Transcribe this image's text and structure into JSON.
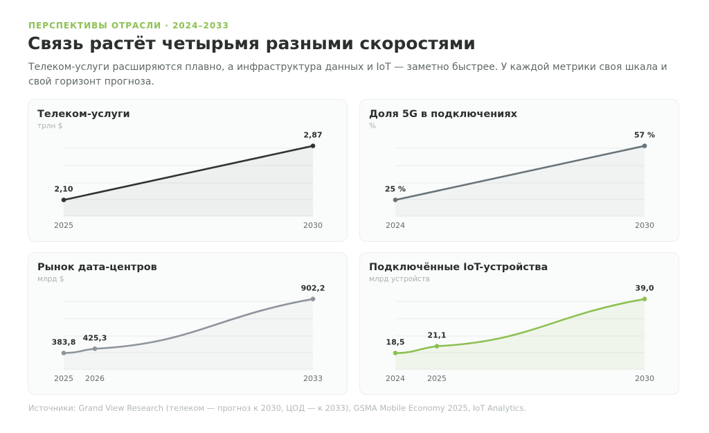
{
  "header": {
    "eyebrow": "ПЕРСПЕКТИВЫ ОТРАСЛИ · 2024–2033",
    "title": "Связь растёт четырьмя разными скоростями",
    "subtitle": "Телеком-услуги расширяются плавно, а инфраструктура данных и IoT — заметно быстрее. У каждой метрики своя шкала и свой горизонт прогноза."
  },
  "colors": {
    "accent": "#8cc152",
    "telecom": "#2f3535",
    "share5g": "#68747a",
    "datacenter": "#8e959c",
    "iot": "#8cc152"
  },
  "chart_data": [
    {
      "id": "telecom",
      "type": "line",
      "title": "Телеком-услуги",
      "unit": "трлн $",
      "x": [
        "2025",
        "2030"
      ],
      "values": [
        2.1,
        2.87
      ],
      "value_labels": [
        "2,10",
        "2,87"
      ],
      "color": "#2f3535",
      "grid": true
    },
    {
      "id": "share5g",
      "type": "line",
      "title": "Доля 5G в подключениях",
      "unit": "%",
      "x": [
        "2024",
        "2030"
      ],
      "values": [
        25,
        57
      ],
      "value_labels": [
        "25 %",
        "57 %"
      ],
      "color": "#68747a",
      "grid": true
    },
    {
      "id": "datacenter",
      "type": "line",
      "title": "Рынок дата-центров",
      "unit": "млрд $",
      "x": [
        "2025",
        "2026",
        "2033"
      ],
      "values": [
        383.8,
        425.3,
        902.2
      ],
      "value_labels": [
        "383,8",
        "425,3",
        "902,2"
      ],
      "color": "#8e959c",
      "grid": true
    },
    {
      "id": "iot",
      "type": "line",
      "title": "Подключённые IoT-устройства",
      "unit": "млрд устройств",
      "x": [
        "2024",
        "2025",
        "2030"
      ],
      "values": [
        18.5,
        21.1,
        39.0
      ],
      "value_labels": [
        "18,5",
        "21,1",
        "39,0"
      ],
      "color": "#8cc152",
      "grid": true
    }
  ],
  "footer": {
    "source": "Источники: Grand View Research (телеком — прогноз к 2030, ЦОД — к 2033), GSMA Mobile Economy 2025, IoT Analytics."
  }
}
